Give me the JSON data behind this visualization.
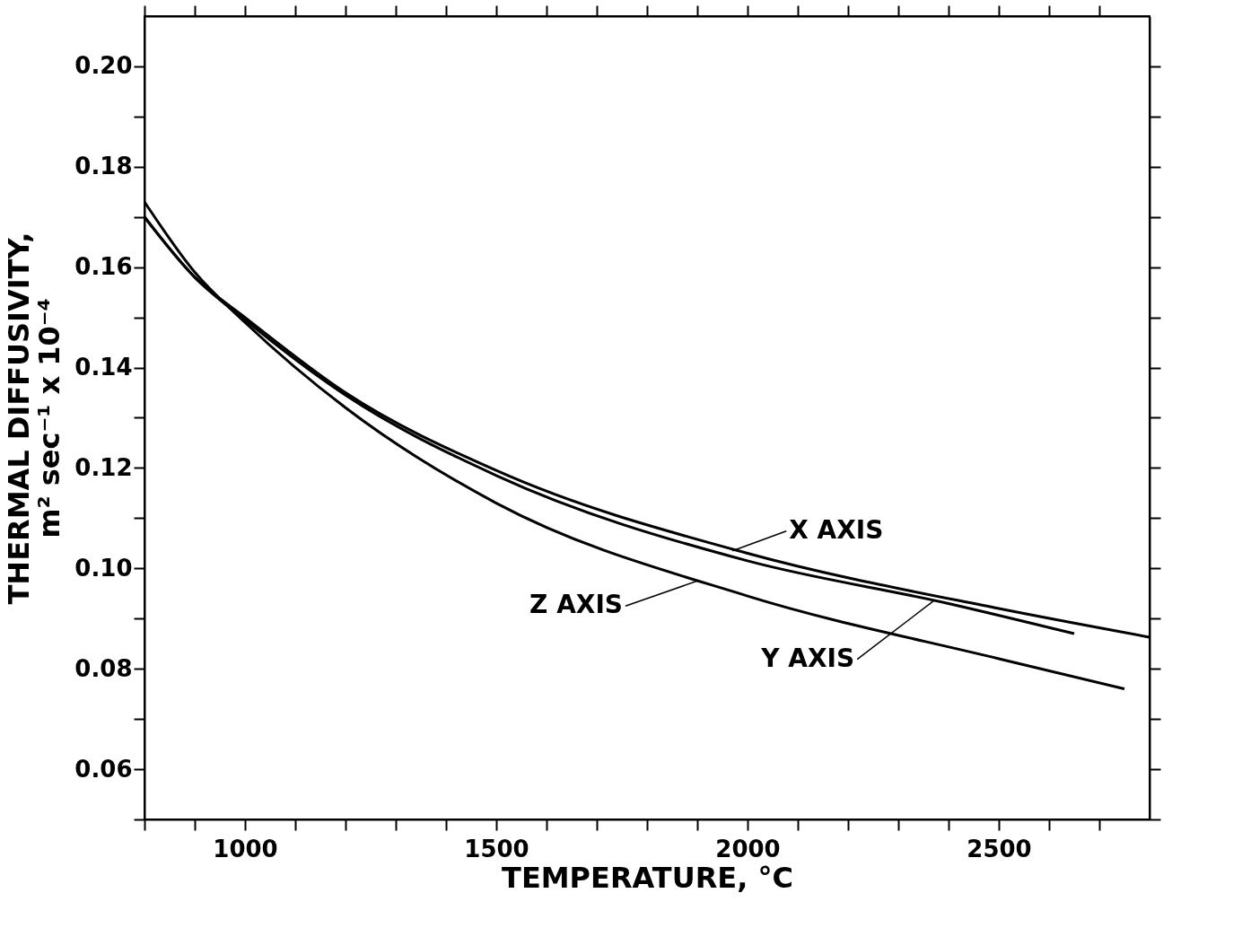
{
  "chart_data": {
    "type": "line",
    "xlabel": "TEMPERATURE,  °C",
    "ylabel": [
      "THERMAL  DIFFUSIVITY,",
      "m² sec⁻¹ x 10⁻⁴"
    ],
    "xlim": [
      800,
      2800
    ],
    "xticks": [
      {
        "value": 800,
        "label": null
      },
      {
        "value": 900,
        "label": null
      },
      1000,
      {
        "value": 1100,
        "label": null
      },
      {
        "value": 1200,
        "label": null
      },
      {
        "value": 1300,
        "label": null
      },
      {
        "value": 1400,
        "label": null
      },
      1500,
      {
        "value": 1600,
        "label": null
      },
      {
        "value": 1700,
        "label": null
      },
      {
        "value": 1800,
        "label": null
      },
      {
        "value": 1900,
        "label": null
      },
      2000,
      {
        "value": 2100,
        "label": null
      },
      {
        "value": 2200,
        "label": null
      },
      {
        "value": 2300,
        "label": null
      },
      {
        "value": 2400,
        "label": null
      },
      2500,
      {
        "value": 2600,
        "label": null
      },
      {
        "value": 2700,
        "label": null
      }
    ],
    "ylim": [
      0.05,
      0.21
    ],
    "yticks": [
      {
        "value": 0.05,
        "label": null
      },
      {
        "value": 0.06,
        "label": "0.06"
      },
      {
        "value": 0.07,
        "label": null
      },
      {
        "value": 0.08,
        "label": "0.08"
      },
      {
        "value": 0.09,
        "label": null
      },
      {
        "value": 0.1,
        "label": "0.10"
      },
      {
        "value": 0.11,
        "label": null
      },
      {
        "value": 0.12,
        "label": "0.12"
      },
      {
        "value": 0.13,
        "label": null
      },
      {
        "value": 0.14,
        "label": "0.14"
      },
      {
        "value": 0.15,
        "label": null
      },
      {
        "value": 0.16,
        "label": "0.16"
      },
      {
        "value": 0.17,
        "label": null
      },
      {
        "value": 0.18,
        "label": "0.18"
      },
      {
        "value": 0.19,
        "label": null
      },
      {
        "value": 0.2,
        "label": "0.20"
      }
    ],
    "series": [
      {
        "color": "#000000",
        "x": [
          800,
          900,
          1000,
          1200,
          1500,
          2000,
          2500,
          2800
        ],
        "values": [
          0.17,
          0.158,
          0.15,
          0.135,
          0.1195,
          0.103,
          0.092,
          0.0863
        ]
      },
      {
        "color": "#000000",
        "x": [
          800,
          900,
          1000,
          1200,
          1500,
          2000,
          2400,
          2650
        ],
        "values": [
          0.17,
          0.158,
          0.1495,
          0.1345,
          0.1185,
          0.1015,
          0.093,
          0.087
        ]
      },
      {
        "color": "#000000",
        "x": [
          800,
          900,
          1000,
          1200,
          1500,
          2000,
          2500,
          2750
        ],
        "values": [
          0.173,
          0.159,
          0.149,
          0.132,
          0.113,
          0.0945,
          0.082,
          0.076
        ]
      }
    ],
    "grid": false,
    "annotations": [
      {
        "text": "X AXIS",
        "x": 1970,
        "y": 0.1035
      },
      {
        "text": "Z AXIS",
        "x": 1900,
        "y": 0.0975
      },
      {
        "text": "Y AXIS",
        "x": 2370,
        "y": 0.0935
      }
    ]
  }
}
